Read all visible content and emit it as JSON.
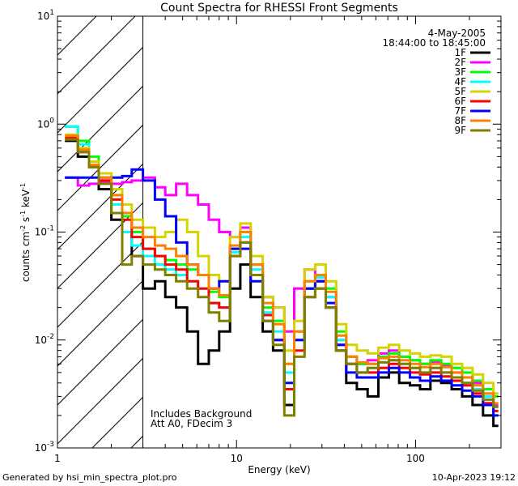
{
  "chart_data": {
    "type": "line",
    "title": "Count Spectra for RHESSI Front Segments",
    "xlabel": "Energy (keV)",
    "ylabel_parts": [
      "counts cm",
      "-2",
      " s",
      "-1",
      " keV",
      "-1"
    ],
    "xscale": "log",
    "yscale": "log",
    "xlim": [
      1,
      300
    ],
    "ylim": [
      0.001,
      10
    ],
    "x_ticks": [
      {
        "value": 1,
        "label": "1"
      },
      {
        "value": 10,
        "label": "10"
      },
      {
        "value": 100,
        "label": "100"
      }
    ],
    "y_ticks": [
      {
        "value": 0.001,
        "base": "10",
        "exp": "-3"
      },
      {
        "value": 0.01,
        "base": "10",
        "exp": "-2"
      },
      {
        "value": 0.1,
        "base": "10",
        "exp": "-1"
      },
      {
        "value": 1,
        "base": "10",
        "exp": "0"
      },
      {
        "value": 10,
        "base": "10",
        "exp": "1"
      }
    ],
    "hatched_region": {
      "x_from": 1,
      "x_to": 3
    },
    "date": "4-May-2005",
    "time_range": "18:44:00 to 18:45:00",
    "annotation_lines": [
      "Includes Background",
      "Att A0, FDecim 3"
    ],
    "bin_edges": [
      1.1,
      1.3,
      1.5,
      1.7,
      2.0,
      2.3,
      2.6,
      3.0,
      3.5,
      4.0,
      4.6,
      5.3,
      6.1,
      7.0,
      8.0,
      9.2,
      10.5,
      12.0,
      14.0,
      16.0,
      18.5,
      21.0,
      24.0,
      27.5,
      31.5,
      36.0,
      41.0,
      47.0,
      54.0,
      62.0,
      71.0,
      81.0,
      93.0,
      106.0,
      121.0,
      139.0,
      159.0,
      182.0,
      208.0,
      238.0,
      272.0,
      290.0
    ],
    "series": [
      {
        "name": "1F",
        "color": "#000000",
        "values": [
          0.7,
          0.5,
          0.4,
          0.25,
          0.13,
          0.1,
          0.06,
          0.03,
          0.035,
          0.025,
          0.02,
          0.012,
          0.006,
          0.008,
          0.012,
          0.03,
          0.05,
          0.025,
          0.012,
          0.008,
          0.0025,
          0.01,
          0.03,
          0.035,
          0.02,
          0.008,
          0.004,
          0.0035,
          0.003,
          0.0045,
          0.005,
          0.004,
          0.0038,
          0.0035,
          0.0042,
          0.004,
          0.0035,
          0.003,
          0.0025,
          0.002,
          0.0016
        ]
      },
      {
        "name": "2F",
        "color": "#ff00ff",
        "values": [
          0.32,
          0.27,
          0.28,
          0.29,
          0.28,
          0.29,
          0.3,
          0.32,
          0.26,
          0.22,
          0.28,
          0.22,
          0.18,
          0.13,
          0.1,
          0.09,
          0.11,
          0.05,
          0.025,
          0.02,
          0.012,
          0.03,
          0.045,
          0.04,
          0.025,
          0.01,
          0.007,
          0.006,
          0.0065,
          0.0075,
          0.008,
          0.007,
          0.0065,
          0.006,
          0.0062,
          0.0058,
          0.005,
          0.0045,
          0.004,
          0.003,
          0.0025
        ]
      },
      {
        "name": "3F",
        "color": "#00ff00",
        "values": [
          0.95,
          0.7,
          0.5,
          0.35,
          0.22,
          0.14,
          0.1,
          0.07,
          0.06,
          0.055,
          0.05,
          0.045,
          0.04,
          0.028,
          0.025,
          0.07,
          0.1,
          0.05,
          0.02,
          0.015,
          0.006,
          0.012,
          0.035,
          0.04,
          0.03,
          0.012,
          0.007,
          0.006,
          0.006,
          0.007,
          0.0075,
          0.007,
          0.0065,
          0.006,
          0.0065,
          0.006,
          0.0055,
          0.005,
          0.0042,
          0.0035,
          0.003
        ]
      },
      {
        "name": "4F",
        "color": "#00ffff",
        "values": [
          0.95,
          0.65,
          0.45,
          0.3,
          0.18,
          0.1,
          0.075,
          0.06,
          0.05,
          0.045,
          0.04,
          0.035,
          0.03,
          0.022,
          0.02,
          0.065,
          0.09,
          0.045,
          0.018,
          0.012,
          0.005,
          0.01,
          0.03,
          0.038,
          0.025,
          0.01,
          0.006,
          0.005,
          0.0055,
          0.0062,
          0.0065,
          0.006,
          0.0055,
          0.005,
          0.0055,
          0.005,
          0.0045,
          0.004,
          0.0035,
          0.003,
          0.0024
        ]
      },
      {
        "name": "5F",
        "color": "#d4d400",
        "values": [
          0.8,
          0.6,
          0.45,
          0.35,
          0.25,
          0.18,
          0.13,
          0.11,
          0.09,
          0.1,
          0.13,
          0.1,
          0.06,
          0.04,
          0.035,
          0.09,
          0.12,
          0.06,
          0.025,
          0.02,
          0.008,
          0.015,
          0.045,
          0.05,
          0.035,
          0.014,
          0.009,
          0.008,
          0.0075,
          0.0085,
          0.009,
          0.008,
          0.0075,
          0.007,
          0.0072,
          0.007,
          0.006,
          0.0055,
          0.0048,
          0.004,
          0.0032
        ]
      },
      {
        "name": "6F",
        "color": "#ff0000",
        "values": [
          0.75,
          0.55,
          0.42,
          0.3,
          0.2,
          0.13,
          0.09,
          0.07,
          0.06,
          0.05,
          0.045,
          0.035,
          0.03,
          0.022,
          0.02,
          0.06,
          0.08,
          0.04,
          0.017,
          0.01,
          0.0035,
          0.008,
          0.025,
          0.03,
          0.02,
          0.009,
          0.006,
          0.005,
          0.005,
          0.0055,
          0.006,
          0.0055,
          0.005,
          0.0048,
          0.005,
          0.0046,
          0.0042,
          0.0038,
          0.0032,
          0.0026,
          0.0022
        ]
      },
      {
        "name": "7F",
        "color": "#0000ff",
        "values": [
          0.32,
          0.32,
          0.32,
          0.32,
          0.32,
          0.33,
          0.38,
          0.3,
          0.2,
          0.14,
          0.08,
          0.05,
          0.04,
          0.03,
          0.035,
          0.07,
          0.07,
          0.035,
          0.015,
          0.01,
          0.004,
          0.01,
          0.03,
          0.035,
          0.022,
          0.009,
          0.005,
          0.0045,
          0.0045,
          0.005,
          0.0055,
          0.005,
          0.0045,
          0.0042,
          0.0046,
          0.0042,
          0.0038,
          0.0034,
          0.003,
          0.0025,
          0.002
        ]
      },
      {
        "name": "8F",
        "color": "#ff7f00",
        "values": [
          0.78,
          0.58,
          0.42,
          0.32,
          0.22,
          0.15,
          0.11,
          0.09,
          0.075,
          0.07,
          0.06,
          0.05,
          0.04,
          0.03,
          0.026,
          0.075,
          0.1,
          0.05,
          0.022,
          0.014,
          0.006,
          0.012,
          0.035,
          0.04,
          0.028,
          0.011,
          0.007,
          0.0062,
          0.006,
          0.0068,
          0.007,
          0.0065,
          0.006,
          0.0056,
          0.006,
          0.0056,
          0.005,
          0.0045,
          0.0038,
          0.0032,
          0.0026
        ]
      },
      {
        "name": "9F",
        "color": "#7f7f00",
        "values": [
          0.72,
          0.55,
          0.4,
          0.28,
          0.15,
          0.05,
          0.06,
          0.05,
          0.045,
          0.04,
          0.035,
          0.03,
          0.025,
          0.018,
          0.015,
          0.06,
          0.08,
          0.04,
          0.015,
          0.009,
          0.002,
          0.007,
          0.025,
          0.03,
          0.02,
          0.008,
          0.006,
          0.005,
          0.0055,
          0.0062,
          0.0065,
          0.006,
          0.0055,
          0.005,
          0.0055,
          0.005,
          0.0045,
          0.004,
          0.0034,
          0.0028,
          0.0024
        ]
      }
    ]
  },
  "footer": {
    "generated_by": "Generated by hsi_min_spectra_plot.pro",
    "timestamp": "10-Apr-2023 19:12"
  }
}
